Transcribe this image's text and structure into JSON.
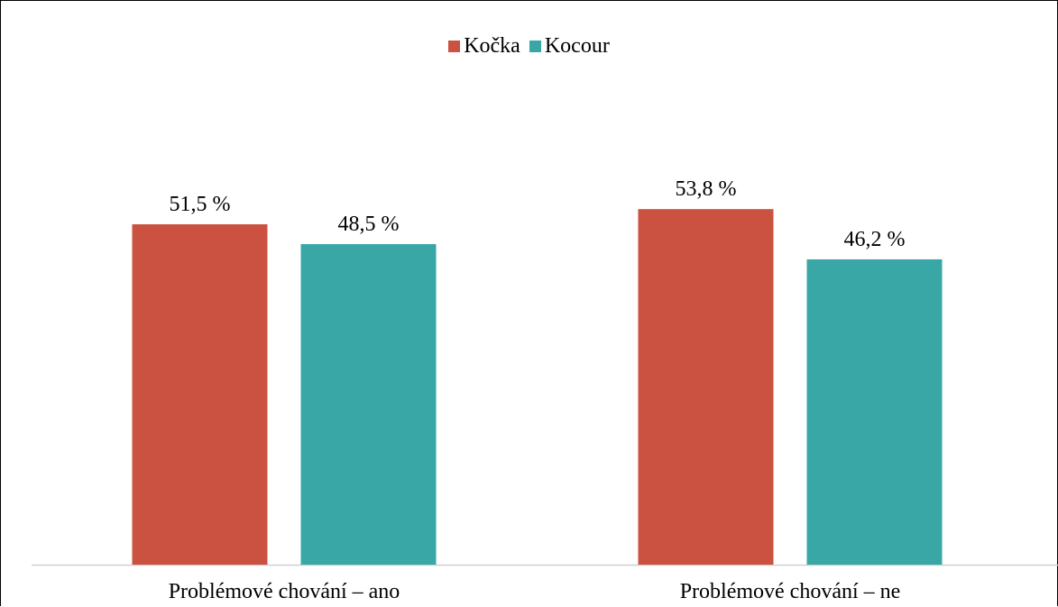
{
  "chart_data": {
    "type": "bar",
    "categories": [
      "Problémové chování – ano",
      "Problémové chování – ne"
    ],
    "series": [
      {
        "name": "Kočka",
        "values": [
          51.5,
          53.8
        ],
        "labels": [
          "51,5 %",
          "53,8 %"
        ],
        "color": "#cb5140"
      },
      {
        "name": "Kocour",
        "values": [
          48.5,
          46.2
        ],
        "labels": [
          "48,5 %",
          "46,2 %"
        ],
        "color": "#3aa7a7"
      }
    ],
    "title": "",
    "xlabel": "",
    "ylabel": "",
    "ylim": [
      0,
      65
    ],
    "grid": false,
    "legend_position": "top-center"
  }
}
